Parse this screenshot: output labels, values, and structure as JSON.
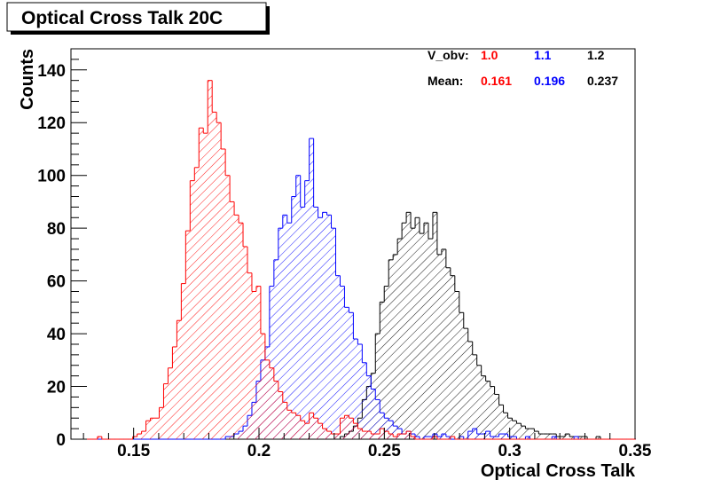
{
  "chart_data": {
    "type": "bar",
    "title": "Optical Cross Talk 20C",
    "xlabel": "Optical Cross Talk",
    "ylabel": "Counts",
    "xlim": [
      0.125,
      0.35
    ],
    "ylim": [
      0,
      148
    ],
    "x_ticks": [
      0.15,
      0.2,
      0.25,
      0.3,
      0.35
    ],
    "x_tick_labels": [
      "0.15",
      "0.2",
      "0.25",
      "0.3",
      "0.35"
    ],
    "y_ticks": [
      0,
      20,
      40,
      60,
      80,
      100,
      120,
      140
    ],
    "y_tick_labels": [
      "0",
      "20",
      "40",
      "60",
      "80",
      "100",
      "120",
      "140"
    ],
    "bin_start": 0.125,
    "bin_width": 0.00176,
    "grid": false,
    "legend": {
      "header_label": "V_obv:",
      "mean_label": "Mean:",
      "placement": "top-right"
    },
    "series": [
      {
        "name": "1.0",
        "mean": "0.161",
        "color": "#ff0000",
        "values": [
          0,
          0,
          0,
          0,
          0,
          0,
          1,
          0,
          0,
          0,
          0,
          0,
          0,
          0,
          1,
          2,
          3,
          7,
          8,
          8,
          12,
          21,
          27,
          35,
          45,
          59,
          79,
          98,
          103,
          118,
          116,
          136,
          124,
          120,
          110,
          100,
          90,
          85,
          82,
          73,
          63,
          56,
          58,
          40,
          30,
          27,
          22,
          18,
          14,
          11,
          10,
          9,
          7,
          6,
          10,
          8,
          6,
          4,
          3,
          2,
          2,
          8,
          9,
          8,
          6,
          4,
          3,
          3,
          2,
          2,
          4,
          3,
          2,
          1,
          2,
          2,
          3,
          1,
          0,
          0,
          0,
          0,
          1,
          0,
          0,
          0,
          1,
          0,
          0,
          0,
          0,
          0,
          0,
          0,
          0,
          0,
          0,
          0,
          0,
          0,
          0,
          0,
          0,
          0,
          0,
          0,
          0,
          0,
          0,
          0,
          0,
          0,
          0,
          0,
          0,
          0,
          0,
          0,
          0,
          0,
          0,
          0,
          0,
          0,
          0,
          0,
          0,
          0
        ]
      },
      {
        "name": "1.1",
        "mean": "0.196",
        "color": "#0000ff",
        "values": [
          0,
          0,
          0,
          0,
          0,
          0,
          0,
          0,
          0,
          0,
          0,
          0,
          0,
          0,
          0,
          0,
          0,
          0,
          0,
          0,
          0,
          0,
          0,
          0,
          0,
          0,
          0,
          0,
          0,
          0,
          0,
          0,
          0,
          0,
          0,
          1,
          1,
          2,
          3,
          5,
          9,
          14,
          22,
          30,
          35,
          58,
          68,
          80,
          85,
          82,
          92,
          100,
          88,
          98,
          114,
          88,
          84,
          86,
          85,
          80,
          62,
          58,
          50,
          48,
          38,
          36,
          29,
          24,
          19,
          15,
          10,
          8,
          7,
          5,
          4,
          2,
          3,
          2,
          1,
          0,
          1,
          1,
          2,
          1,
          2,
          1,
          0,
          0,
          1,
          0,
          3,
          4,
          2,
          2,
          3,
          1,
          1,
          2,
          2,
          1,
          1,
          0,
          0,
          1,
          0,
          0,
          0,
          0,
          0,
          1,
          0,
          0,
          0,
          0,
          1,
          0,
          0,
          0,
          0,
          0,
          0,
          0,
          0,
          0,
          0,
          0,
          0,
          0
        ]
      },
      {
        "name": "1.2",
        "mean": "0.237",
        "color": "#000000",
        "values": [
          0,
          0,
          0,
          0,
          0,
          0,
          0,
          0,
          0,
          0,
          0,
          0,
          0,
          0,
          0,
          0,
          0,
          0,
          0,
          0,
          0,
          0,
          0,
          0,
          0,
          0,
          0,
          0,
          0,
          0,
          0,
          0,
          0,
          0,
          0,
          0,
          0,
          0,
          0,
          0,
          0,
          0,
          0,
          0,
          0,
          0,
          0,
          0,
          0,
          0,
          0,
          0,
          0,
          0,
          0,
          0,
          0,
          0,
          0,
          0,
          0,
          1,
          2,
          3,
          5,
          8,
          15,
          20,
          25,
          40,
          52,
          58,
          68,
          70,
          76,
          82,
          86,
          80,
          84,
          78,
          82,
          76,
          86,
          70,
          72,
          65,
          62,
          56,
          48,
          42,
          37,
          32,
          28,
          24,
          22,
          20,
          17,
          13,
          10,
          8,
          7,
          6,
          5,
          4,
          4,
          3,
          2,
          2,
          2,
          2,
          1,
          1,
          2,
          1,
          1,
          1,
          1,
          0,
          0,
          1,
          0,
          0,
          0,
          0,
          0,
          0,
          0,
          0
        ]
      }
    ]
  }
}
